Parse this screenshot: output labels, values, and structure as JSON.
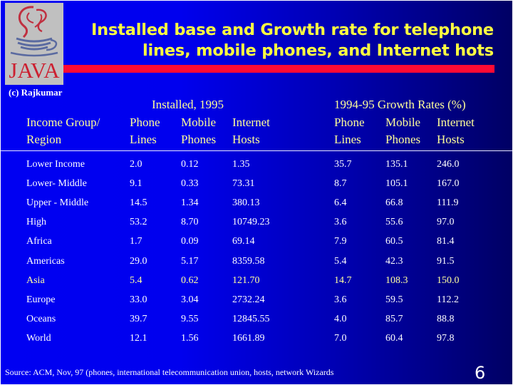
{
  "logo": {
    "text": "JAVA",
    "credit": "(c) Rajkumar"
  },
  "title": {
    "line1": "Installed base and Growth rate for telephone",
    "line2": "lines, mobile phones, and Internet hots"
  },
  "table": {
    "group_headers": {
      "installed": "Installed, 1995",
      "growth": "1994-95 Growth Rates (%)"
    },
    "column_headers": [
      {
        "line1": "Income Group/",
        "line2": "Region"
      },
      {
        "line1": "Phone",
        "line2": "Lines"
      },
      {
        "line1": "Mobile",
        "line2": "Phones"
      },
      {
        "line1": "Internet",
        "line2": "Hosts"
      },
      {
        "line1": "Phone",
        "line2": "Lines"
      },
      {
        "line1": "Mobile",
        "line2": "Phones"
      },
      {
        "line1": "Internet",
        "line2": "Hosts"
      }
    ],
    "rows": [
      {
        "region": "Lower Income",
        "inst_phone": "2.0",
        "inst_mobile": "0.12",
        "inst_hosts": "1.35",
        "gr_phone": "35.7",
        "gr_mobile": "135.1",
        "gr_hosts": "246.0"
      },
      {
        "region": "Lower- Middle",
        "inst_phone": "9.1",
        "inst_mobile": "0.33",
        "inst_hosts": "73.31",
        "gr_phone": "8.7",
        "gr_mobile": "105.1",
        "gr_hosts": "167.0"
      },
      {
        "region": "Upper - Middle",
        "inst_phone": "14.5",
        "inst_mobile": "1.34",
        "inst_hosts": "380.13",
        "gr_phone": "6.4",
        "gr_mobile": "66.8",
        "gr_hosts": "111.9"
      },
      {
        "region": "High",
        "inst_phone": "53.2",
        "inst_mobile": "8.70",
        "inst_hosts": "10749.23",
        "gr_phone": "3.6",
        "gr_mobile": "55.6",
        "gr_hosts": "97.0"
      },
      {
        "region": "Africa",
        "inst_phone": "1.7",
        "inst_mobile": "0.09",
        "inst_hosts": "69.14",
        "gr_phone": "7.9",
        "gr_mobile": "60.5",
        "gr_hosts": "81.4"
      },
      {
        "region": "Americas",
        "inst_phone": "29.0",
        "inst_mobile": "5.17",
        "inst_hosts": "8359.58",
        "gr_phone": "5.4",
        "gr_mobile": "42.3",
        "gr_hosts": "91.5"
      },
      {
        "region": "Asia",
        "inst_phone": "5.4",
        "inst_mobile": "0.62",
        "inst_hosts": "121.70",
        "gr_phone": "14.7",
        "gr_mobile": "108.3",
        "gr_hosts": "150.0"
      },
      {
        "region": "Europe",
        "inst_phone": "33.0",
        "inst_mobile": "3.04",
        "inst_hosts": "2732.24",
        "gr_phone": "3.6",
        "gr_mobile": "59.5",
        "gr_hosts": "112.2"
      },
      {
        "region": "Oceans",
        "inst_phone": "39.7",
        "inst_mobile": "9.55",
        "inst_hosts": "12845.55",
        "gr_phone": "4.0",
        "gr_mobile": "85.7",
        "gr_hosts": "88.8"
      },
      {
        "region": "World",
        "inst_phone": "12.1",
        "inst_mobile": "1.56",
        "inst_hosts": "1661.89",
        "gr_phone": "7.0",
        "gr_mobile": "60.4",
        "gr_hosts": "97.8"
      }
    ]
  },
  "footer": {
    "source": "Source: ACM, Nov, 97 (phones, international telecommunication union, hosts, network Wizards",
    "page_number": "6"
  },
  "colors": {
    "background_left": "#0000f2",
    "background_right": "#000064",
    "title": "#ffff40",
    "accent_bar": "#ff0a34",
    "header_text": "#ffff99",
    "highlight_row": "#ffffa0"
  }
}
